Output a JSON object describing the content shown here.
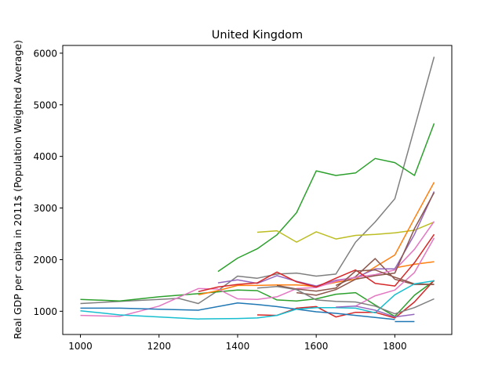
{
  "chart_data": {
    "type": "line",
    "title": "United Kingdom",
    "xlabel": "",
    "ylabel": "Real GDP per capita in 2011$ (Population Weighted Average)",
    "xlim": [
      955,
      1945
    ],
    "ylim": [
      550,
      6150
    ],
    "x_ticks": [
      1000,
      1200,
      1400,
      1600,
      1800
    ],
    "y_ticks": [
      1000,
      2000,
      3000,
      4000,
      5000,
      6000
    ],
    "grid": false,
    "legend": "none",
    "series": [
      {
        "color": "#7f7f7f",
        "points": [
          [
            1000,
            1150
          ],
          [
            1100,
            1190
          ],
          [
            1200,
            1230
          ],
          [
            1250,
            1250
          ],
          [
            1300,
            1150
          ],
          [
            1350,
            1400
          ],
          [
            1400,
            1680
          ],
          [
            1450,
            1640
          ],
          [
            1500,
            1720
          ],
          [
            1550,
            1740
          ],
          [
            1600,
            1680
          ],
          [
            1650,
            1720
          ],
          [
            1700,
            2340
          ],
          [
            1750,
            2730
          ],
          [
            1800,
            3180
          ],
          [
            1850,
            4550
          ],
          [
            1900,
            5930
          ]
        ]
      },
      {
        "color": "#2ca02c",
        "points": [
          [
            1350,
            1770
          ],
          [
            1400,
            2030
          ],
          [
            1450,
            2210
          ],
          [
            1500,
            2480
          ],
          [
            1550,
            2910
          ],
          [
            1600,
            3720
          ],
          [
            1650,
            3630
          ],
          [
            1700,
            3680
          ],
          [
            1750,
            3960
          ],
          [
            1800,
            3880
          ],
          [
            1850,
            3630
          ],
          [
            1900,
            4640
          ]
        ]
      },
      {
        "color": "#2ca02c",
        "points": [
          [
            1000,
            1230
          ],
          [
            1100,
            1200
          ],
          [
            1200,
            1280
          ],
          [
            1300,
            1340
          ],
          [
            1400,
            1410
          ],
          [
            1450,
            1400
          ],
          [
            1500,
            1220
          ],
          [
            1550,
            1200
          ],
          [
            1600,
            1240
          ],
          [
            1650,
            1330
          ],
          [
            1700,
            1360
          ],
          [
            1750,
            1120
          ],
          [
            1800,
            900
          ],
          [
            1850,
            1310
          ],
          [
            1900,
            1590
          ]
        ]
      },
      {
        "color": "#bcbd22",
        "points": [
          [
            1450,
            2530
          ],
          [
            1500,
            2560
          ],
          [
            1550,
            2340
          ],
          [
            1600,
            2540
          ],
          [
            1650,
            2400
          ],
          [
            1700,
            2470
          ],
          [
            1750,
            2490
          ],
          [
            1800,
            2520
          ],
          [
            1850,
            2570
          ],
          [
            1900,
            2730
          ]
        ]
      },
      {
        "color": "#ff7f0e",
        "points": [
          [
            1300,
            1320
          ],
          [
            1350,
            1400
          ],
          [
            1400,
            1500
          ],
          [
            1450,
            1500
          ],
          [
            1500,
            1510
          ],
          [
            1550,
            1510
          ],
          [
            1600,
            1480
          ],
          [
            1650,
            1560
          ],
          [
            1700,
            1620
          ],
          [
            1750,
            1860
          ],
          [
            1800,
            2090
          ],
          [
            1850,
            2800
          ],
          [
            1900,
            3500
          ]
        ]
      },
      {
        "color": "#ff7f0e",
        "points": [
          [
            1800,
            1840
          ],
          [
            1850,
            1910
          ],
          [
            1900,
            1960
          ]
        ]
      },
      {
        "color": "#8c564b",
        "points": [
          [
            1650,
            1500
          ],
          [
            1700,
            1670
          ],
          [
            1750,
            2020
          ],
          [
            1800,
            1620
          ],
          [
            1850,
            1520
          ],
          [
            1900,
            1520
          ]
        ]
      },
      {
        "color": "#9467bd",
        "points": [
          [
            1350,
            1550
          ],
          [
            1400,
            1610
          ],
          [
            1450,
            1540
          ],
          [
            1500,
            1690
          ],
          [
            1550,
            1580
          ],
          [
            1600,
            1490
          ],
          [
            1650,
            1600
          ],
          [
            1700,
            1650
          ],
          [
            1750,
            1820
          ],
          [
            1800,
            1820
          ],
          [
            1850,
            2490
          ],
          [
            1900,
            3320
          ]
        ]
      },
      {
        "color": "#e377c2",
        "points": [
          [
            1000,
            920
          ],
          [
            1100,
            900
          ],
          [
            1200,
            1100
          ],
          [
            1300,
            1440
          ],
          [
            1350,
            1430
          ],
          [
            1400,
            1240
          ],
          [
            1450,
            1230
          ],
          [
            1500,
            1280
          ],
          [
            1550,
            1440
          ],
          [
            1600,
            1460
          ],
          [
            1650,
            1580
          ],
          [
            1700,
            1660
          ],
          [
            1750,
            1710
          ],
          [
            1800,
            1800
          ],
          [
            1850,
            2200
          ],
          [
            1900,
            2740
          ]
        ]
      },
      {
        "color": "#e377c2",
        "points": [
          [
            1700,
            1100
          ],
          [
            1750,
            1300
          ],
          [
            1800,
            1410
          ],
          [
            1850,
            1750
          ],
          [
            1900,
            2420
          ]
        ]
      },
      {
        "color": "#d62728",
        "points": [
          [
            1300,
            1380
          ],
          [
            1350,
            1470
          ],
          [
            1400,
            1520
          ],
          [
            1450,
            1550
          ],
          [
            1500,
            1760
          ],
          [
            1550,
            1570
          ],
          [
            1600,
            1470
          ],
          [
            1650,
            1640
          ],
          [
            1700,
            1800
          ],
          [
            1750,
            1540
          ],
          [
            1800,
            1490
          ],
          [
            1850,
            1940
          ],
          [
            1900,
            2490
          ]
        ]
      },
      {
        "color": "#d62728",
        "points": [
          [
            1450,
            930
          ],
          [
            1500,
            920
          ],
          [
            1550,
            1060
          ],
          [
            1600,
            1090
          ],
          [
            1650,
            890
          ],
          [
            1700,
            980
          ],
          [
            1750,
            980
          ],
          [
            1800,
            870
          ],
          [
            1850,
            1180
          ],
          [
            1900,
            1600
          ]
        ]
      },
      {
        "color": "#8c564b",
        "points": [
          [
            1500,
            1500
          ],
          [
            1550,
            1430
          ],
          [
            1600,
            1390
          ],
          [
            1650,
            1450
          ],
          [
            1700,
            1780
          ],
          [
            1750,
            1800
          ],
          [
            1800,
            1660
          ],
          [
            1850,
            1530
          ],
          [
            1900,
            1520
          ]
        ]
      },
      {
        "color": "#8c564b",
        "points": [
          [
            1550,
            1360
          ],
          [
            1600,
            1310
          ],
          [
            1650,
            1420
          ],
          [
            1700,
            1620
          ],
          [
            1750,
            1690
          ],
          [
            1800,
            1740
          ],
          [
            1850,
            2600
          ],
          [
            1900,
            3300
          ]
        ]
      },
      {
        "color": "#1f77b4",
        "points": [
          [
            1000,
            1060
          ],
          [
            1100,
            1060
          ],
          [
            1200,
            1040
          ],
          [
            1300,
            1020
          ],
          [
            1400,
            1160
          ],
          [
            1450,
            1130
          ],
          [
            1500,
            1090
          ],
          [
            1550,
            1040
          ],
          [
            1600,
            990
          ],
          [
            1650,
            960
          ],
          [
            1700,
            920
          ],
          [
            1750,
            880
          ],
          [
            1800,
            840
          ]
        ]
      },
      {
        "color": "#1f77b4",
        "points": [
          [
            1800,
            800
          ],
          [
            1850,
            800
          ]
        ]
      },
      {
        "color": "#17becf",
        "points": [
          [
            1000,
            1010
          ],
          [
            1100,
            930
          ],
          [
            1200,
            890
          ],
          [
            1300,
            850
          ],
          [
            1400,
            860
          ],
          [
            1450,
            870
          ],
          [
            1500,
            920
          ],
          [
            1550,
            1040
          ],
          [
            1600,
            1070
          ],
          [
            1650,
            1070
          ],
          [
            1700,
            1060
          ],
          [
            1750,
            970
          ],
          [
            1800,
            1320
          ],
          [
            1850,
            1530
          ],
          [
            1900,
            1590
          ]
        ]
      },
      {
        "color": "#7f7f7f",
        "points": [
          [
            1450,
            1450
          ],
          [
            1500,
            1480
          ],
          [
            1550,
            1420
          ],
          [
            1600,
            1220
          ],
          [
            1650,
            1190
          ],
          [
            1700,
            1180
          ],
          [
            1750,
            1100
          ],
          [
            1800,
            950
          ],
          [
            1850,
            1070
          ],
          [
            1900,
            1240
          ]
        ]
      },
      {
        "color": "#9467bd",
        "points": [
          [
            1650,
            1080
          ],
          [
            1700,
            1100
          ],
          [
            1750,
            1020
          ],
          [
            1800,
            890
          ],
          [
            1850,
            940
          ]
        ]
      }
    ]
  }
}
